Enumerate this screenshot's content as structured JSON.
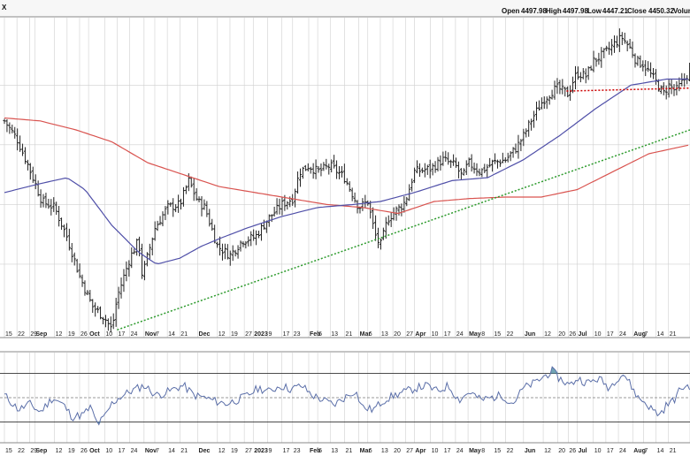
{
  "header": {
    "ticker_fragment": "X",
    "open_label": "Open",
    "open": "4497.98",
    "high_label": "High",
    "high": "4497.98",
    "low_label": "Low",
    "low": "4447.21",
    "close_label": "Close",
    "close": "4450.32",
    "volume_label": "Volum"
  },
  "chart_data": [
    {
      "type": "ohlc",
      "panel": "price",
      "x_ticks": [
        {
          "label": "15",
          "d": 0
        },
        {
          "label": "22",
          "d": 7
        },
        {
          "label": "29",
          "d": 14
        },
        {
          "label": "Sep",
          "d": 17,
          "bold": true
        },
        {
          "label": "12",
          "d": 28
        },
        {
          "label": "19",
          "d": 35
        },
        {
          "label": "26",
          "d": 42
        },
        {
          "label": "Oct",
          "d": 47,
          "bold": true
        },
        {
          "label": "10",
          "d": 56
        },
        {
          "label": "17",
          "d": 63
        },
        {
          "label": "24",
          "d": 70
        },
        {
          "label": "Nov",
          "d": 78,
          "bold": true
        },
        {
          "label": "7",
          "d": 84
        },
        {
          "label": "14",
          "d": 91
        },
        {
          "label": "21",
          "d": 98
        },
        {
          "label": "Dec",
          "d": 108,
          "bold": true
        },
        {
          "label": "12",
          "d": 119
        },
        {
          "label": "19",
          "d": 126
        },
        {
          "label": "27",
          "d": 134
        },
        {
          "label": "2023",
          "d": 139,
          "bold": true
        },
        {
          "label": "9",
          "d": 147
        },
        {
          "label": "17",
          "d": 155
        },
        {
          "label": "23",
          "d": 161
        },
        {
          "label": "Feb",
          "d": 170,
          "bold": true
        },
        {
          "label": "6",
          "d": 175
        },
        {
          "label": "13",
          "d": 182
        },
        {
          "label": "21",
          "d": 190
        },
        {
          "label": "Mar",
          "d": 198,
          "bold": true
        },
        {
          "label": "6",
          "d": 203
        },
        {
          "label": "13",
          "d": 210
        },
        {
          "label": "20",
          "d": 217
        },
        {
          "label": "27",
          "d": 224
        },
        {
          "label": "Apr",
          "d": 229,
          "bold": true
        },
        {
          "label": "10",
          "d": 238
        },
        {
          "label": "17",
          "d": 245
        },
        {
          "label": "24",
          "d": 252
        },
        {
          "label": "May",
          "d": 259,
          "bold": true
        },
        {
          "label": "8",
          "d": 266
        },
        {
          "label": "15",
          "d": 273
        },
        {
          "label": "22",
          "d": 280
        },
        {
          "label": "Jun",
          "d": 290,
          "bold": true
        },
        {
          "label": "12",
          "d": 301
        },
        {
          "label": "20",
          "d": 309
        },
        {
          "label": "26",
          "d": 315
        },
        {
          "label": "Jul",
          "d": 320,
          "bold": true
        },
        {
          "label": "10",
          "d": 329
        },
        {
          "label": "17",
          "d": 336
        },
        {
          "label": "24",
          "d": 343
        },
        {
          "label": "Aug",
          "d": 351,
          "bold": true
        },
        {
          "label": "7",
          "d": 357
        },
        {
          "label": "14",
          "d": 364
        },
        {
          "label": "21",
          "d": 371
        },
        {
          "label": "2",
          "d": 383
        }
      ],
      "price_keypoints": [
        [
          0,
          4280
        ],
        [
          7,
          4220
        ],
        [
          14,
          4120
        ],
        [
          21,
          4010
        ],
        [
          28,
          3990
        ],
        [
          35,
          3890
        ],
        [
          42,
          3760
        ],
        [
          49,
          3660
        ],
        [
          56,
          3620
        ],
        [
          60,
          3580
        ],
        [
          63,
          3690
        ],
        [
          70,
          3820
        ],
        [
          75,
          3880
        ],
        [
          77,
          3760
        ],
        [
          84,
          3920
        ],
        [
          91,
          3990
        ],
        [
          98,
          4000
        ],
        [
          103,
          4080
        ],
        [
          108,
          4010
        ],
        [
          112,
          3990
        ],
        [
          119,
          3860
        ],
        [
          126,
          3830
        ],
        [
          133,
          3880
        ],
        [
          140,
          3890
        ],
        [
          147,
          3950
        ],
        [
          155,
          4000
        ],
        [
          161,
          4020
        ],
        [
          165,
          4110
        ],
        [
          170,
          4130
        ],
        [
          175,
          4110
        ],
        [
          182,
          4130
        ],
        [
          190,
          4090
        ],
        [
          194,
          4040
        ],
        [
          198,
          3990
        ],
        [
          203,
          4010
        ],
        [
          207,
          3900
        ],
        [
          210,
          3860
        ],
        [
          214,
          3950
        ],
        [
          217,
          3970
        ],
        [
          221,
          3990
        ],
        [
          224,
          4010
        ],
        [
          229,
          4110
        ],
        [
          238,
          4120
        ],
        [
          245,
          4150
        ],
        [
          252,
          4130
        ],
        [
          256,
          4090
        ],
        [
          259,
          4140
        ],
        [
          266,
          4110
        ],
        [
          273,
          4140
        ],
        [
          280,
          4150
        ],
        [
          286,
          4190
        ],
        [
          290,
          4230
        ],
        [
          295,
          4290
        ],
        [
          301,
          4350
        ],
        [
          306,
          4380
        ],
        [
          309,
          4390
        ],
        [
          315,
          4370
        ],
        [
          318,
          4420
        ],
        [
          320,
          4440
        ],
        [
          325,
          4430
        ],
        [
          329,
          4480
        ],
        [
          336,
          4510
        ],
        [
          341,
          4540
        ],
        [
          345,
          4560
        ],
        [
          350,
          4520
        ],
        [
          353,
          4480
        ],
        [
          357,
          4470
        ],
        [
          364,
          4410
        ],
        [
          368,
          4370
        ],
        [
          371,
          4400
        ],
        [
          375,
          4380
        ],
        [
          380,
          4420
        ],
        [
          383,
          4450
        ]
      ],
      "sma50_keypoints": [
        [
          0,
          4040
        ],
        [
          20,
          4070
        ],
        [
          35,
          4090
        ],
        [
          45,
          4050
        ],
        [
          60,
          3930
        ],
        [
          75,
          3840
        ],
        [
          85,
          3800
        ],
        [
          98,
          3820
        ],
        [
          110,
          3860
        ],
        [
          122,
          3890
        ],
        [
          135,
          3920
        ],
        [
          155,
          3960
        ],
        [
          175,
          3990
        ],
        [
          195,
          4000
        ],
        [
          210,
          4010
        ],
        [
          229,
          4040
        ],
        [
          250,
          4080
        ],
        [
          270,
          4090
        ],
        [
          290,
          4150
        ],
        [
          310,
          4230
        ],
        [
          330,
          4320
        ],
        [
          350,
          4400
        ],
        [
          370,
          4420
        ],
        [
          383,
          4420
        ]
      ],
      "sma200_keypoints": [
        [
          0,
          4290
        ],
        [
          20,
          4280
        ],
        [
          40,
          4250
        ],
        [
          60,
          4210
        ],
        [
          80,
          4140
        ],
        [
          100,
          4100
        ],
        [
          120,
          4060
        ],
        [
          140,
          4040
        ],
        [
          160,
          4020
        ],
        [
          180,
          4000
        ],
        [
          200,
          3990
        ],
        [
          220,
          3970
        ],
        [
          240,
          4010
        ],
        [
          260,
          4020
        ],
        [
          280,
          4025
        ],
        [
          300,
          4025
        ],
        [
          320,
          4050
        ],
        [
          340,
          4110
        ],
        [
          360,
          4170
        ],
        [
          383,
          4200
        ]
      ],
      "trendline_green": {
        "start": [
          63,
          3580
        ],
        "end": [
          383,
          4250
        ]
      },
      "support_red": {
        "start": [
          314,
          4380
        ],
        "end": [
          383,
          4390
        ]
      },
      "colors": {
        "bars": "#222222",
        "sma50": "#4f4fa8",
        "sma200": "#d9534f",
        "trend": "#2e9b2e",
        "support": "#cc0000",
        "grid": "#cfcfcf"
      },
      "grid": true
    },
    {
      "type": "line",
      "panel": "oscillator",
      "keypoints": [
        [
          0,
          52
        ],
        [
          8,
          40
        ],
        [
          14,
          45
        ],
        [
          20,
          38
        ],
        [
          27,
          50
        ],
        [
          33,
          44
        ],
        [
          38,
          34
        ],
        [
          44,
          36
        ],
        [
          48,
          42
        ],
        [
          52,
          28
        ],
        [
          56,
          34
        ],
        [
          60,
          45
        ],
        [
          64,
          50
        ],
        [
          70,
          55
        ],
        [
          78,
          60
        ],
        [
          85,
          52
        ],
        [
          90,
          54
        ],
        [
          96,
          58
        ],
        [
          100,
          60
        ],
        [
          106,
          52
        ],
        [
          112,
          50
        ],
        [
          118,
          47
        ],
        [
          124,
          45
        ],
        [
          130,
          48
        ],
        [
          136,
          52
        ],
        [
          142,
          58
        ],
        [
          148,
          55
        ],
        [
          154,
          60
        ],
        [
          160,
          57
        ],
        [
          166,
          60
        ],
        [
          172,
          52
        ],
        [
          178,
          48
        ],
        [
          184,
          44
        ],
        [
          190,
          50
        ],
        [
          196,
          56
        ],
        [
          200,
          42
        ],
        [
          206,
          40
        ],
        [
          212,
          48
        ],
        [
          218,
          52
        ],
        [
          224,
          55
        ],
        [
          230,
          58
        ],
        [
          236,
          60
        ],
        [
          242,
          55
        ],
        [
          248,
          60
        ],
        [
          254,
          48
        ],
        [
          260,
          55
        ],
        [
          266,
          48
        ],
        [
          272,
          50
        ],
        [
          278,
          52
        ],
        [
          284,
          45
        ],
        [
          290,
          58
        ],
        [
          296,
          62
        ],
        [
          302,
          68
        ],
        [
          306,
          72
        ],
        [
          310,
          66
        ],
        [
          316,
          60
        ],
        [
          320,
          66
        ],
        [
          326,
          62
        ],
        [
          332,
          66
        ],
        [
          338,
          58
        ],
        [
          342,
          66
        ],
        [
          346,
          70
        ],
        [
          350,
          60
        ],
        [
          354,
          50
        ],
        [
          358,
          46
        ],
        [
          362,
          40
        ],
        [
          366,
          36
        ],
        [
          370,
          44
        ],
        [
          374,
          48
        ],
        [
          378,
          58
        ],
        [
          383,
          60
        ]
      ],
      "upper_band": 70,
      "lower_band": 30,
      "mid": 50,
      "colors": {
        "line": "#5a6ea8",
        "fill": "#4f8fa3"
      }
    }
  ]
}
